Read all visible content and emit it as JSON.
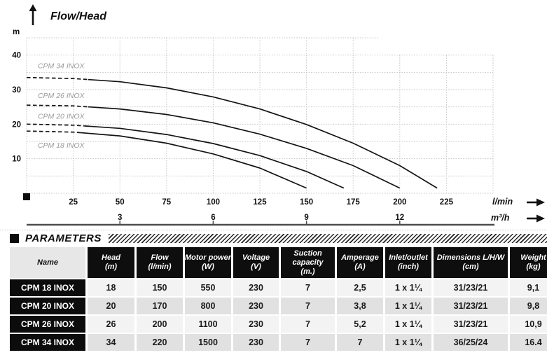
{
  "chart_data": {
    "type": "line",
    "title": "Flow/Head",
    "ylabel": "m",
    "xlabel": "l/min",
    "xlabel2": "m³/h",
    "xlim": [
      0,
      250
    ],
    "ylim": [
      0,
      45
    ],
    "grid": true,
    "y_ticks": [
      10,
      20,
      30,
      40
    ],
    "x_ticks": [
      25,
      50,
      75,
      100,
      125,
      150,
      175,
      200,
      225
    ],
    "x2_ticks": [
      {
        "value": "3",
        "lmin": 50
      },
      {
        "value": "6",
        "lmin": 100
      },
      {
        "value": "9",
        "lmin": 150
      },
      {
        "value": "12",
        "lmin": 200
      }
    ],
    "series": [
      {
        "name": "CPM 34 INOX",
        "shutoff_head_m": 33.5,
        "max_flow_lmin": 220,
        "dashed_until_lmin": 33,
        "label_at": [
          6,
          36.2
        ],
        "points": [
          [
            0,
            33.5
          ],
          [
            25,
            33.2
          ],
          [
            50,
            32.3
          ],
          [
            75,
            30.5
          ],
          [
            100,
            27.9
          ],
          [
            125,
            24.4
          ],
          [
            150,
            19.9
          ],
          [
            175,
            14.5
          ],
          [
            200,
            8.0
          ],
          [
            220,
            1.5
          ]
        ]
      },
      {
        "name": "CPM 26 INOX",
        "shutoff_head_m": 25.5,
        "max_flow_lmin": 200,
        "dashed_until_lmin": 33,
        "label_at": [
          6,
          27.6
        ],
        "points": [
          [
            0,
            25.5
          ],
          [
            25,
            25.3
          ],
          [
            50,
            24.4
          ],
          [
            75,
            22.8
          ],
          [
            100,
            20.4
          ],
          [
            125,
            17.1
          ],
          [
            150,
            13.0
          ],
          [
            175,
            8.0
          ],
          [
            200,
            1.5
          ]
        ]
      },
      {
        "name": "CPM 20 INOX",
        "shutoff_head_m": 20,
        "max_flow_lmin": 170,
        "dashed_until_lmin": 31,
        "label_at": [
          6,
          21.6
        ],
        "points": [
          [
            0,
            20
          ],
          [
            25,
            19.7
          ],
          [
            50,
            18.8
          ],
          [
            75,
            17.0
          ],
          [
            100,
            14.4
          ],
          [
            125,
            10.9
          ],
          [
            150,
            6.3
          ],
          [
            170,
            1.5
          ]
        ]
      },
      {
        "name": "CPM 18 INOX",
        "shutoff_head_m": 18,
        "max_flow_lmin": 150,
        "dashed_until_lmin": 29,
        "label_at": [
          6,
          13.2
        ],
        "points": [
          [
            0,
            18
          ],
          [
            25,
            17.7
          ],
          [
            50,
            16.6
          ],
          [
            75,
            14.5
          ],
          [
            100,
            11.4
          ],
          [
            125,
            7.3
          ],
          [
            150,
            1.5
          ]
        ]
      }
    ]
  },
  "parameters": {
    "section_title": "PARAMETERS",
    "columns": [
      {
        "label": "Name",
        "unit": ""
      },
      {
        "label": "Head",
        "unit": "(m)"
      },
      {
        "label": "Flow",
        "unit": "(l/min)"
      },
      {
        "label": "Motor power",
        "unit": "(W)"
      },
      {
        "label": "Voltage",
        "unit": "(V)"
      },
      {
        "label": "Suction capacity",
        "unit": "(m.)"
      },
      {
        "label": "Amperage",
        "unit": "(A)"
      },
      {
        "label": "Inlet/outlet",
        "unit": "(inch)"
      },
      {
        "label": "Dimensions L/H/W",
        "unit": "(cm)"
      },
      {
        "label": "Weight",
        "unit": "(kg)"
      }
    ],
    "rows": [
      {
        "name": "CPM 18 INOX",
        "values": [
          "18",
          "150",
          "550",
          "230",
          "7",
          "2,5",
          "1 x 1¼",
          "31/23/21",
          "9,1"
        ]
      },
      {
        "name": "CPM 20 INOX",
        "values": [
          "20",
          "170",
          "800",
          "230",
          "7",
          "3,8",
          "1 x 1¼",
          "31/23/21",
          "9,8"
        ]
      },
      {
        "name": "CPM 26 INOX",
        "values": [
          "26",
          "200",
          "1100",
          "230",
          "7",
          "5,2",
          "1 x 1¼",
          "31/23/21",
          "10,9"
        ]
      },
      {
        "name": "CPM 34 INOX",
        "values": [
          "34",
          "220",
          "1500",
          "230",
          "7",
          "7",
          "1 x 1¼",
          "36/25/24",
          "16.4"
        ]
      }
    ]
  },
  "colors": {
    "curve": "#141414",
    "curve_label": "#9c9c9c",
    "grid": "#c5c5c5",
    "axis_line": "#4d4d4d",
    "header_bg": "#0e0e0e",
    "name_header_bg": "#e7e7e7",
    "row_light": "#f3f3f3",
    "row_dark": "#e1e1e1"
  }
}
